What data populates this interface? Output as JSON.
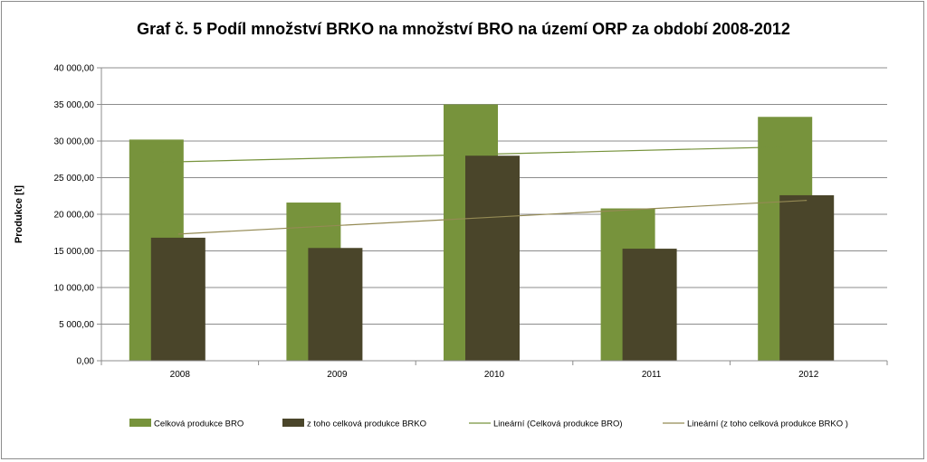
{
  "chart_data": {
    "type": "bar",
    "title": "Graf č. 5 Podíl množství BRKO na množství BRO na území ORP za období 2008-2012",
    "xlabel": "",
    "ylabel": "Produkce [t]",
    "categories": [
      "2008",
      "2009",
      "2010",
      "2011",
      "2012"
    ],
    "ylim": [
      0,
      40000
    ],
    "yticks": [
      0,
      5000,
      10000,
      15000,
      20000,
      25000,
      30000,
      35000,
      40000
    ],
    "ytick_labels": [
      "0,00",
      "5 000,00",
      "10 000,00",
      "15 000,00",
      "20 000,00",
      "25 000,00",
      "30 000,00",
      "35 000,00",
      "40 000,00"
    ],
    "grid": true,
    "legend_position": "bottom",
    "series": [
      {
        "name": "Celková produkce BRO",
        "values": [
          30200,
          21600,
          35000,
          20800,
          33300
        ],
        "color": "#77933c"
      },
      {
        "name": "z toho celková produkce BRKO",
        "values": [
          16800,
          15400,
          28000,
          15300,
          22600
        ],
        "color": "#4a452a"
      }
    ],
    "trendlines": [
      {
        "name": "Lineární (Celková produkce BRO)",
        "of": 0,
        "start": 27100,
        "end": 29200,
        "color": "#77933c"
      },
      {
        "name": "Lineární (z toho celková produkce BRKO )",
        "of": 1,
        "start": 17300,
        "end": 21900,
        "color": "#948a54"
      }
    ]
  }
}
